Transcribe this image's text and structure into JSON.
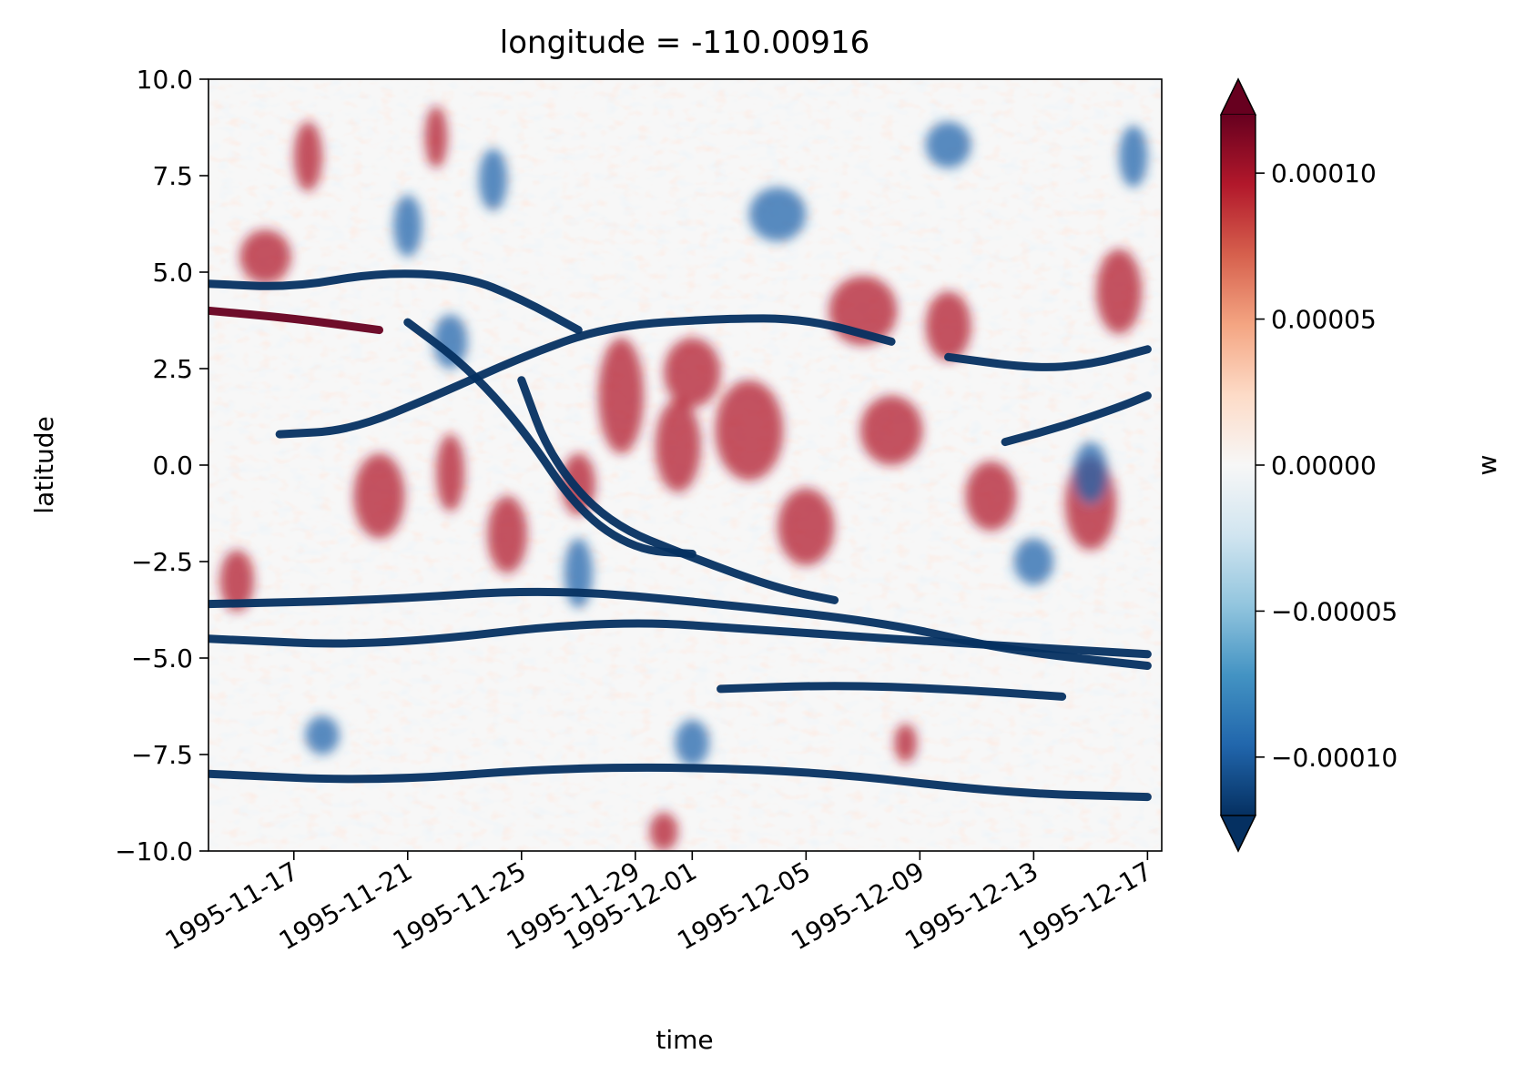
{
  "chart_data": {
    "type": "heatmap",
    "title": "longitude = -110.00916",
    "xlabel": "time",
    "ylabel": "latitude",
    "x_range": [
      "1995-11-14",
      "1995-12-17"
    ],
    "x_ticks": [
      "1995-11-17",
      "1995-11-21",
      "1995-11-25",
      "1995-11-29",
      "1995-12-01",
      "1995-12-05",
      "1995-12-09",
      "1995-12-13",
      "1995-12-17"
    ],
    "ylim": [
      -10.0,
      10.0
    ],
    "y_ticks": [
      10.0,
      7.5,
      5.0,
      2.5,
      0.0,
      -2.5,
      -5.0,
      -7.5,
      -10.0
    ],
    "y_tick_labels": [
      "10.0",
      "7.5",
      "5.0",
      "2.5",
      "0.0",
      "−2.5",
      "−5.0",
      "−7.5",
      "−10.0"
    ],
    "colorbar": {
      "label": "w",
      "colormap": "RdBu_r",
      "vmin": -0.00012,
      "vmax": 0.00012,
      "extend": "both",
      "ticks": [
        0.0001,
        5e-05,
        0.0,
        -5e-05,
        -0.0001
      ],
      "tick_labels": [
        "0.00010",
        "0.00005",
        "0.00000",
        "−0.00005",
        "−0.00010"
      ]
    },
    "features": [
      {
        "type": "band",
        "sign": "negative",
        "points": [
          [
            "1995-11-16T12",
            0.8
          ],
          [
            "1995-11-19",
            0.9
          ],
          [
            "1995-11-22",
            1.8
          ],
          [
            "1995-11-25",
            2.8
          ],
          [
            "1995-11-28",
            3.6
          ],
          [
            "1995-12-02",
            3.8
          ],
          [
            "1995-12-05",
            3.8
          ],
          [
            "1995-12-08",
            3.2
          ]
        ]
      },
      {
        "type": "band",
        "sign": "negative",
        "points": [
          [
            "1995-11-14",
            4.7
          ],
          [
            "1995-11-17",
            4.6
          ],
          [
            "1995-11-20",
            5.0
          ],
          [
            "1995-11-23",
            4.9
          ],
          [
            "1995-11-25",
            4.3
          ],
          [
            "1995-11-27",
            3.5
          ]
        ]
      },
      {
        "type": "band",
        "sign": "negative",
        "points": [
          [
            "1995-11-21",
            3.7
          ],
          [
            "1995-11-23",
            2.6
          ],
          [
            "1995-11-25",
            1.0
          ],
          [
            "1995-11-27",
            -1.2
          ],
          [
            "1995-11-29",
            -2.2
          ],
          [
            "1995-12-01",
            -2.3
          ]
        ]
      },
      {
        "type": "band",
        "sign": "negative",
        "points": [
          [
            "1995-11-25",
            2.2
          ],
          [
            "1995-11-26",
            0.2
          ],
          [
            "1995-11-28",
            -1.5
          ],
          [
            "1995-12-01",
            -2.4
          ],
          [
            "1995-12-04",
            -3.2
          ],
          [
            "1995-12-06",
            -3.5
          ]
        ]
      },
      {
        "type": "band",
        "sign": "negative",
        "points": [
          [
            "1995-11-14",
            -3.6
          ],
          [
            "1995-11-20",
            -3.5
          ],
          [
            "1995-11-26",
            -3.2
          ],
          [
            "1995-12-02",
            -3.6
          ],
          [
            "1995-12-08",
            -4.1
          ],
          [
            "1995-12-12",
            -4.8
          ],
          [
            "1995-12-17",
            -5.2
          ]
        ]
      },
      {
        "type": "band",
        "sign": "negative",
        "points": [
          [
            "1995-11-14",
            -4.5
          ],
          [
            "1995-11-20",
            -4.7
          ],
          [
            "1995-11-28",
            -4.0
          ],
          [
            "1995-12-04",
            -4.3
          ],
          [
            "1995-12-10",
            -4.6
          ],
          [
            "1995-12-17",
            -4.9
          ]
        ]
      },
      {
        "type": "band",
        "sign": "negative",
        "points": [
          [
            "1995-12-10",
            2.8
          ],
          [
            "1995-12-13",
            2.5
          ],
          [
            "1995-12-15",
            2.6
          ],
          [
            "1995-12-17",
            3.0
          ]
        ]
      },
      {
        "type": "band",
        "sign": "negative",
        "points": [
          [
            "1995-12-12",
            0.6
          ],
          [
            "1995-12-14",
            1.0
          ],
          [
            "1995-12-16",
            1.5
          ],
          [
            "1995-12-17",
            1.8
          ]
        ]
      },
      {
        "type": "band",
        "sign": "negative",
        "points": [
          [
            "1995-12-02",
            -5.8
          ],
          [
            "1995-12-06",
            -5.7
          ],
          [
            "1995-12-10",
            -5.8
          ],
          [
            "1995-12-14",
            -6.0
          ]
        ]
      },
      {
        "type": "band",
        "sign": "negative",
        "points": [
          [
            "1995-11-14",
            -8.0
          ],
          [
            "1995-11-20",
            -8.2
          ],
          [
            "1995-11-27",
            -7.8
          ],
          [
            "1995-12-05",
            -7.9
          ],
          [
            "1995-12-12",
            -8.5
          ],
          [
            "1995-12-17",
            -8.6
          ]
        ]
      },
      {
        "type": "band",
        "sign": "positive",
        "points": [
          [
            "1995-11-14",
            4.0
          ],
          [
            "1995-11-17",
            3.8
          ],
          [
            "1995-11-20",
            3.5
          ]
        ]
      }
    ],
    "blobs": [
      {
        "sign": "positive",
        "x": "1995-11-28T12",
        "y": 1.8,
        "dx": 0.8,
        "dy": 1.5
      },
      {
        "sign": "positive",
        "x": "1995-11-30T12",
        "y": 0.5,
        "dx": 0.8,
        "dy": 1.2
      },
      {
        "sign": "positive",
        "x": "1995-12-01",
        "y": 2.4,
        "dx": 1.0,
        "dy": 0.9
      },
      {
        "sign": "positive",
        "x": "1995-11-22T12",
        "y": -0.2,
        "dx": 0.5,
        "dy": 1.0
      },
      {
        "sign": "positive",
        "x": "1995-11-20",
        "y": -0.8,
        "dx": 0.9,
        "dy": 1.1
      },
      {
        "sign": "positive",
        "x": "1995-11-24T12",
        "y": -1.8,
        "dx": 0.7,
        "dy": 1.0
      },
      {
        "sign": "positive",
        "x": "1995-11-27",
        "y": -0.5,
        "dx": 0.6,
        "dy": 0.8
      },
      {
        "sign": "positive",
        "x": "1995-12-03",
        "y": 0.9,
        "dx": 1.2,
        "dy": 1.3
      },
      {
        "sign": "positive",
        "x": "1995-12-07",
        "y": 4.0,
        "dx": 1.2,
        "dy": 0.9
      },
      {
        "sign": "positive",
        "x": "1995-12-10",
        "y": 3.6,
        "dx": 0.8,
        "dy": 0.9
      },
      {
        "sign": "positive",
        "x": "1995-12-08",
        "y": 0.9,
        "dx": 1.1,
        "dy": 0.9
      },
      {
        "sign": "positive",
        "x": "1995-12-11T12",
        "y": -0.8,
        "dx": 0.9,
        "dy": 0.9
      },
      {
        "sign": "positive",
        "x": "1995-12-15",
        "y": -1.0,
        "dx": 0.9,
        "dy": 1.2
      },
      {
        "sign": "positive",
        "x": "1995-12-16",
        "y": 4.5,
        "dx": 0.8,
        "dy": 1.1
      },
      {
        "sign": "positive",
        "x": "1995-12-05",
        "y": -1.6,
        "dx": 1.0,
        "dy": 1.0
      },
      {
        "sign": "positive",
        "x": "1995-11-15",
        "y": -3.0,
        "dx": 0.6,
        "dy": 0.8
      },
      {
        "sign": "positive",
        "x": "1995-11-17T12",
        "y": 8.0,
        "dx": 0.5,
        "dy": 0.9
      },
      {
        "sign": "positive",
        "x": "1995-11-22",
        "y": 8.5,
        "dx": 0.4,
        "dy": 0.8
      },
      {
        "sign": "positive",
        "x": "1995-11-16",
        "y": 5.4,
        "dx": 0.9,
        "dy": 0.7
      },
      {
        "sign": "positive",
        "x": "1995-11-30",
        "y": -9.5,
        "dx": 0.5,
        "dy": 0.5
      },
      {
        "sign": "positive",
        "x": "1995-12-08T12",
        "y": -7.2,
        "dx": 0.4,
        "dy": 0.5
      },
      {
        "sign": "negative",
        "x": "1995-11-22T12",
        "y": 3.2,
        "dx": 0.6,
        "dy": 0.7
      },
      {
        "sign": "negative",
        "x": "1995-11-21",
        "y": 6.2,
        "dx": 0.5,
        "dy": 0.8
      },
      {
        "sign": "negative",
        "x": "1995-11-24",
        "y": 7.4,
        "dx": 0.5,
        "dy": 0.8
      },
      {
        "sign": "negative",
        "x": "1995-12-15",
        "y": -0.2,
        "dx": 0.6,
        "dy": 0.8
      },
      {
        "sign": "negative",
        "x": "1995-12-13",
        "y": -2.5,
        "dx": 0.7,
        "dy": 0.6
      },
      {
        "sign": "negative",
        "x": "1995-12-04",
        "y": 6.5,
        "dx": 1.0,
        "dy": 0.7
      },
      {
        "sign": "negative",
        "x": "1995-11-27",
        "y": -2.8,
        "dx": 0.5,
        "dy": 0.9
      },
      {
        "sign": "negative",
        "x": "1995-12-01",
        "y": -7.2,
        "dx": 0.6,
        "dy": 0.6
      },
      {
        "sign": "negative",
        "x": "1995-11-18",
        "y": -7.0,
        "dx": 0.6,
        "dy": 0.5
      },
      {
        "sign": "negative",
        "x": "1995-12-16T12",
        "y": 8.0,
        "dx": 0.5,
        "dy": 0.8
      },
      {
        "sign": "negative",
        "x": "1995-12-10",
        "y": 8.3,
        "dx": 0.8,
        "dy": 0.6
      }
    ]
  }
}
